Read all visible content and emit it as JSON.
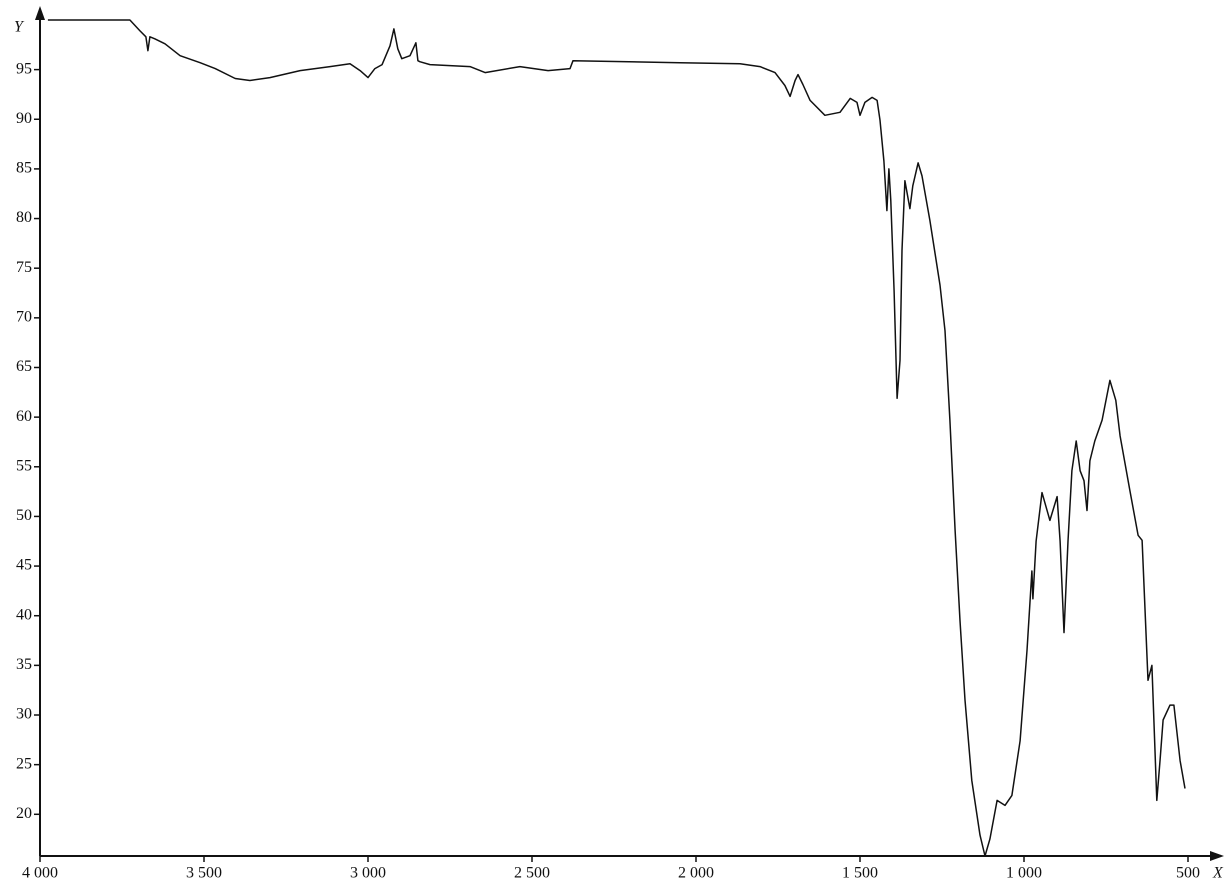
{
  "chart_data": {
    "type": "line",
    "x_label": "X",
    "y_label": "Y",
    "x": [
      3976,
      3726,
      3695,
      3677,
      3671,
      3665,
      3650,
      3619,
      3573,
      3512,
      3466,
      3405,
      3360,
      3299,
      3207,
      3116,
      3055,
      3024,
      3000,
      2979,
      2957,
      2933,
      2921,
      2909,
      2897,
      2872,
      2854,
      2848,
      2842,
      2811,
      2689,
      2643,
      2537,
      2451,
      2384,
      2375,
      2049,
      1866,
      1805,
      1759,
      1729,
      1713,
      1698,
      1689,
      1674,
      1652,
      1607,
      1561,
      1530,
      1509,
      1500,
      1485,
      1463,
      1448,
      1439,
      1427,
      1418,
      1412,
      1406,
      1396,
      1387,
      1378,
      1372,
      1363,
      1348,
      1339,
      1323,
      1311,
      1287,
      1256,
      1241,
      1226,
      1210,
      1195,
      1180,
      1159,
      1134,
      1119,
      1104,
      1082,
      1058,
      1037,
      1012,
      991,
      976,
      973,
      963,
      945,
      921,
      899,
      890,
      878,
      866,
      854,
      841,
      829,
      817,
      808,
      799,
      784,
      762,
      738,
      720,
      707,
      677,
      652,
      640,
      622,
      610,
      595,
      585,
      576,
      555,
      543,
      524,
      509
    ],
    "series": [
      {
        "name": null,
        "color": "#111111",
        "values": [
          100.0,
          100.0,
          98.9,
          98.3,
          96.9,
          98.3,
          98.1,
          97.6,
          96.4,
          95.7,
          95.1,
          94.1,
          93.9,
          94.2,
          94.9,
          95.3,
          95.6,
          94.9,
          94.2,
          95.1,
          95.5,
          97.4,
          99.1,
          97.1,
          96.1,
          96.4,
          97.7,
          95.9,
          95.8,
          95.5,
          95.3,
          94.7,
          95.3,
          94.9,
          95.1,
          95.9,
          95.7,
          95.6,
          95.3,
          94.7,
          93.4,
          92.3,
          93.9,
          94.5,
          93.5,
          91.9,
          90.4,
          90.7,
          92.1,
          91.7,
          90.4,
          91.7,
          92.2,
          91.9,
          89.9,
          85.8,
          80.8,
          85.0,
          81.8,
          72.7,
          61.9,
          65.7,
          76.8,
          83.8,
          81.0,
          83.3,
          85.6,
          84.3,
          79.8,
          73.3,
          68.7,
          59.7,
          48.6,
          39.5,
          31.5,
          23.4,
          17.9,
          15.8,
          17.5,
          21.4,
          20.9,
          21.9,
          27.4,
          36.5,
          44.5,
          41.7,
          47.5,
          52.4,
          49.6,
          52.0,
          47.5,
          38.3,
          47.5,
          54.6,
          57.6,
          54.6,
          53.6,
          50.6,
          55.6,
          57.6,
          59.7,
          63.7,
          61.7,
          58.1,
          52.6,
          48.1,
          47.6,
          33.5,
          35.0,
          21.4,
          25.5,
          29.5,
          31.0,
          31.0,
          25.4,
          22.6
        ]
      }
    ],
    "xlim": [
      4000,
      400
    ],
    "ylim": [
      15.8,
      100.5
    ],
    "xticks": [
      {
        "value": 4000,
        "label": "4 000"
      },
      {
        "value": 3500,
        "label": "3 500"
      },
      {
        "value": 3000,
        "label": "3 000"
      },
      {
        "value": 2500,
        "label": "2 500"
      },
      {
        "value": 2000,
        "label": "2 000"
      },
      {
        "value": 1500,
        "label": "1 500"
      },
      {
        "value": 1000,
        "label": "1 000"
      },
      500
    ],
    "yticks": [
      20,
      25,
      30,
      35,
      40,
      45,
      50,
      55,
      60,
      65,
      70,
      75,
      80,
      85,
      90,
      95
    ],
    "grid": false
  }
}
